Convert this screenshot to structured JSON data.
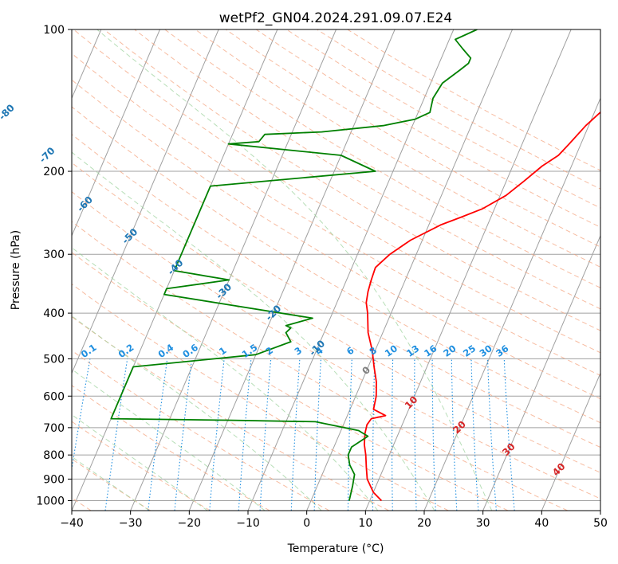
{
  "chart_data": {
    "type": "line",
    "title": "wetPf2_GN04.2024.291.09.07.E24",
    "xlabel": "Temperature (°C)",
    "ylabel": "Pressure (hPa)",
    "xlim": [
      -40,
      50
    ],
    "ylim": [
      1050,
      100
    ],
    "y_scale": "log",
    "grid": true,
    "x_ticks": [
      -40,
      -30,
      -20,
      -10,
      0,
      10,
      20,
      30,
      40,
      50
    ],
    "x_tick_labels": [
      "−40",
      "−30",
      "−20",
      "−10",
      "0",
      "10",
      "20",
      "30",
      "40",
      "50"
    ],
    "y_ticks": [
      100,
      200,
      300,
      400,
      500,
      600,
      700,
      800,
      900,
      1000
    ],
    "y_tick_labels": [
      "100",
      "200",
      "300",
      "400",
      "500",
      "600",
      "700",
      "800",
      "900",
      "1000"
    ],
    "series": [
      {
        "color": "#ff0000",
        "x": [
          12.0,
          10.0,
          8.0,
          7.0,
          6.0,
          5.0,
          4.3,
          4.0,
          4.3,
          6.5,
          4.0,
          3.5,
          2.5,
          1.0,
          -0.5,
          -2.5,
          -4.0,
          -5.0,
          -5.5,
          -5.8,
          -6.0,
          -4.5,
          -2.0,
          2.0,
          5.0,
          8.0,
          11.0,
          13.0,
          15.0,
          17.0,
          18.0,
          19.5,
          21.0,
          22.5,
          24.0,
          26.0,
          28.5,
          30.5,
          32.0,
          33.0
        ],
        "y": [
          1000,
          960,
          900,
          850,
          800,
          760,
          720,
          690,
          670,
          660,
          640,
          600,
          560,
          520,
          480,
          440,
          400,
          380,
          360,
          340,
          320,
          300,
          280,
          260,
          250,
          240,
          225,
          210,
          195,
          185,
          175,
          160,
          150,
          140,
          130,
          122,
          115,
          110,
          105,
          100
        ]
      },
      {
        "color": "#008000",
        "x": [
          6.5,
          6.0,
          5.5,
          4.0,
          3.0,
          3.0,
          5.0,
          3.0,
          -5.0,
          -20.0,
          -40.0,
          -40.0,
          -20.0,
          -15.0,
          -16.5,
          -16.0,
          -17.0,
          -13.0,
          -40.0,
          -40.0,
          -30.0,
          -40.0,
          -40.0,
          -13.0,
          -20.0,
          -40.0,
          -35.0,
          -34.5,
          -25.0,
          -15.0,
          -10.0,
          -8.0,
          -8.5,
          -8.0,
          -6.0,
          -5.0,
          -5.0,
          -7.0,
          -9.0,
          -6.0
        ],
        "y": [
          1000,
          930,
          880,
          840,
          800,
          770,
          730,
          710,
          680,
          675,
          670,
          520,
          490,
          460,
          440,
          430,
          425,
          410,
          365,
          355,
          340,
          325,
          215,
          200,
          185,
          175,
          173,
          167,
          165,
          160,
          155,
          150,
          140,
          130,
          122,
          118,
          115,
          110,
          105,
          100
        ]
      }
    ],
    "isotherms_spacing": 10,
    "dry_adiabats_c": [
      -80,
      -70,
      -60,
      -50,
      -40,
      -30,
      -20,
      -10,
      0,
      10,
      20,
      30,
      40,
      50,
      60,
      70,
      80,
      90,
      100,
      110,
      120,
      130,
      140,
      150,
      160,
      170,
      180,
      190,
      200
    ],
    "moist_adiabats_c": [
      -30,
      -20,
      -10,
      0,
      10,
      20,
      30
    ],
    "mixing_ratios": [
      "0.1",
      "0.2",
      "0.4",
      "0.6",
      "1",
      "1.5",
      "2",
      "3",
      "4",
      "6",
      "8",
      "10",
      "13",
      "16",
      "20",
      "25",
      "30",
      "36"
    ],
    "isotherm_labels": [
      "-100",
      "-90",
      "-80",
      "-70",
      "-60",
      "-50",
      "-40",
      "-30",
      "-20",
      "-10"
    ],
    "isotherm_labels_warm": [
      "0",
      "10",
      "20",
      "30",
      "40"
    ],
    "colors": {
      "temperature": "#ff0000",
      "dewpoint": "#008000",
      "isotherm": "#a0a0a0",
      "dry_adiabat": "#f4a582",
      "moist_adiabat": "#98d098",
      "mixing_ratio": "#1f8fe0",
      "label_blue": "#1f77b4",
      "label_red": "#d62728",
      "label_gray": "#7f7f7f",
      "label_mr": "#1f8fe0"
    }
  }
}
